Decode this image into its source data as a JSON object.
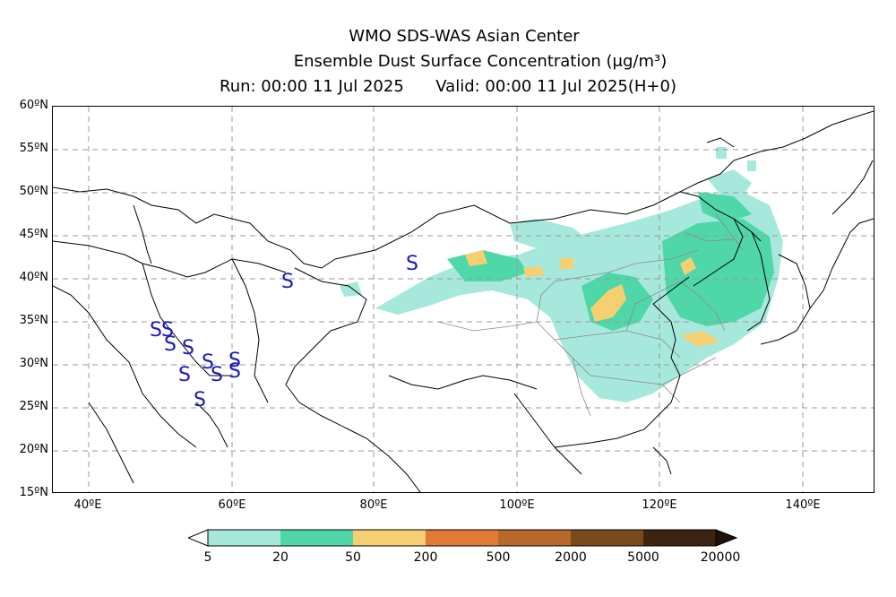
{
  "title": {
    "line1": "WMO SDS-WAS Asian Center",
    "line2": "Ensemble Dust Surface Concentration (μg/m³)",
    "run_label": "Run: 00:00 11 Jul 2025",
    "valid_label": "Valid: 00:00 11 Jul 2025(H+0)"
  },
  "lat_labels": [
    "60ºN",
    "55ºN",
    "50ºN",
    "45ºN",
    "40ºN",
    "35ºN",
    "30ºN",
    "25ºN",
    "20ºN",
    "15ºN"
  ],
  "lon_labels": [
    "40ºE",
    "60ºE",
    "80ºE",
    "100ºE",
    "120ºE",
    "140ºE"
  ],
  "legend": {
    "ticks": [
      "5",
      "20",
      "50",
      "200",
      "500",
      "2000",
      "5000",
      "20000"
    ],
    "colors": [
      "#a6e8dc",
      "#4fd6a9",
      "#f6d070",
      "#e9a046",
      "#d4792f",
      "#a15b22",
      "#6e4020",
      "#3c2410"
    ]
  },
  "markers": {
    "symbol": "S",
    "color": "#1a1ab8"
  }
}
